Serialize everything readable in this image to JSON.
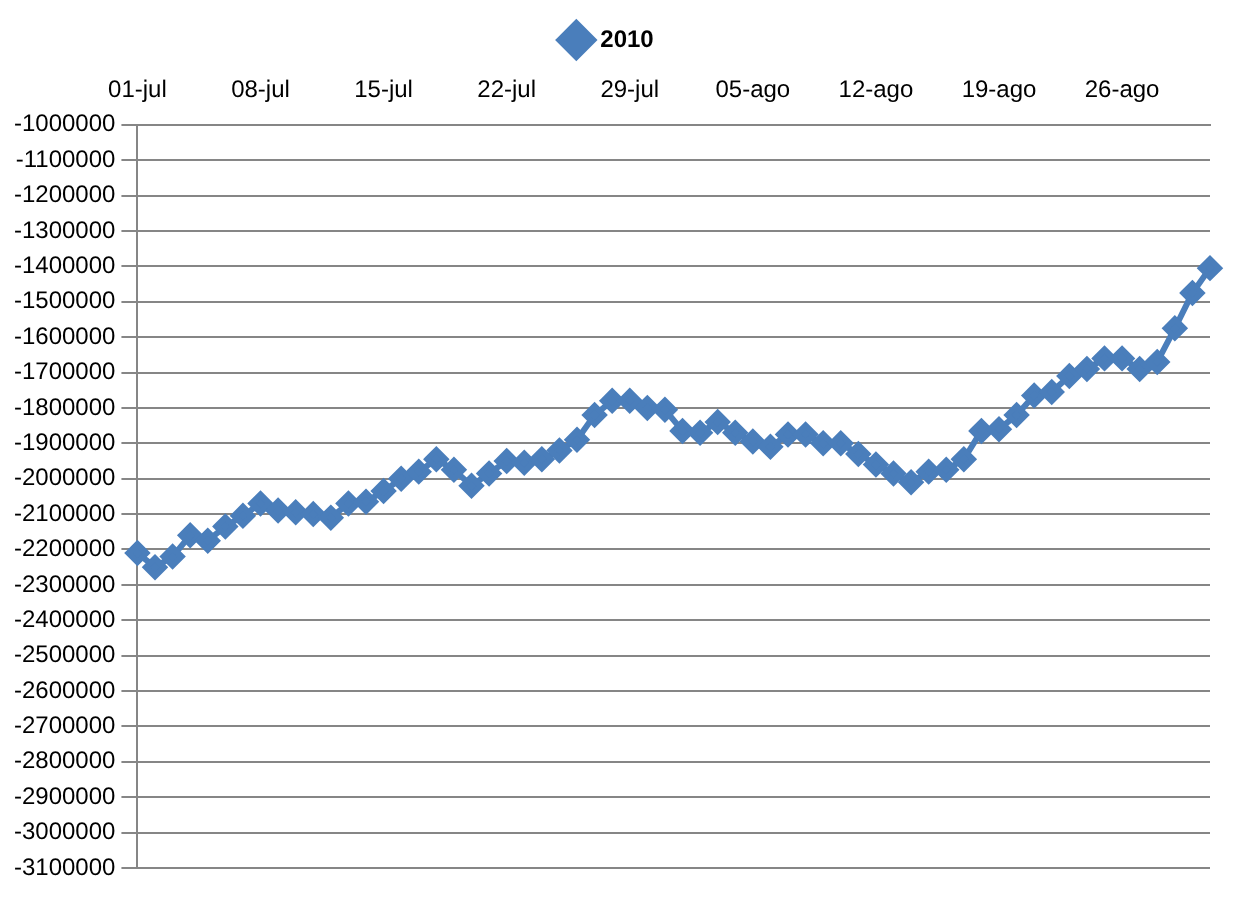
{
  "chart_data": {
    "type": "line",
    "categories": [
      "01-jul",
      null,
      null,
      null,
      null,
      null,
      null,
      "08-jul",
      null,
      null,
      null,
      null,
      null,
      null,
      "15-jul",
      null,
      null,
      null,
      null,
      null,
      null,
      "22-jul",
      null,
      null,
      null,
      null,
      null,
      null,
      "29-jul",
      null,
      null,
      null,
      null,
      null,
      null,
      "05-ago",
      null,
      null,
      null,
      null,
      null,
      null,
      "12-ago",
      null,
      null,
      null,
      null,
      null,
      null,
      "19-ago",
      null,
      null,
      null,
      null,
      null,
      null,
      "26-ago",
      null,
      null,
      null,
      null,
      null
    ],
    "series": [
      {
        "name": "2010",
        "color": "#4a7ebb",
        "values": [
          -2210000,
          -2250000,
          -2220000,
          -2160000,
          -2175000,
          -2135000,
          -2105000,
          -2070000,
          -2090000,
          -2095000,
          -2100000,
          -2110000,
          -2070000,
          -2065000,
          -2035000,
          -2000000,
          -1980000,
          -1945000,
          -1975000,
          -2020000,
          -1985000,
          -1950000,
          -1955000,
          -1945000,
          -1920000,
          -1890000,
          -1820000,
          -1780000,
          -1780000,
          -1800000,
          -1805000,
          -1865000,
          -1870000,
          -1840000,
          -1870000,
          -1895000,
          -1910000,
          -1875000,
          -1875000,
          -1900000,
          -1900000,
          -1930000,
          -1960000,
          -1985000,
          -2010000,
          -1980000,
          -1975000,
          -1945000,
          -1865000,
          -1860000,
          -1820000,
          -1765000,
          -1755000,
          -1710000,
          -1690000,
          -1660000,
          -1660000,
          -1690000,
          -1670000,
          -1575000,
          -1475000,
          -1405000
        ]
      }
    ],
    "ylim": [
      -3100000,
      -1000000
    ],
    "yticks": [
      -3100000,
      -3000000,
      -2900000,
      -2800000,
      -2700000,
      -2600000,
      -2500000,
      -2400000,
      -2300000,
      -2200000,
      -2100000,
      -2000000,
      -1900000,
      -1800000,
      -1700000,
      -1600000,
      -1500000,
      -1400000,
      -1300000,
      -1200000,
      -1100000,
      -1000000
    ],
    "grid": "y",
    "legend": "top",
    "marker": "diamond",
    "line_style": "solid"
  }
}
